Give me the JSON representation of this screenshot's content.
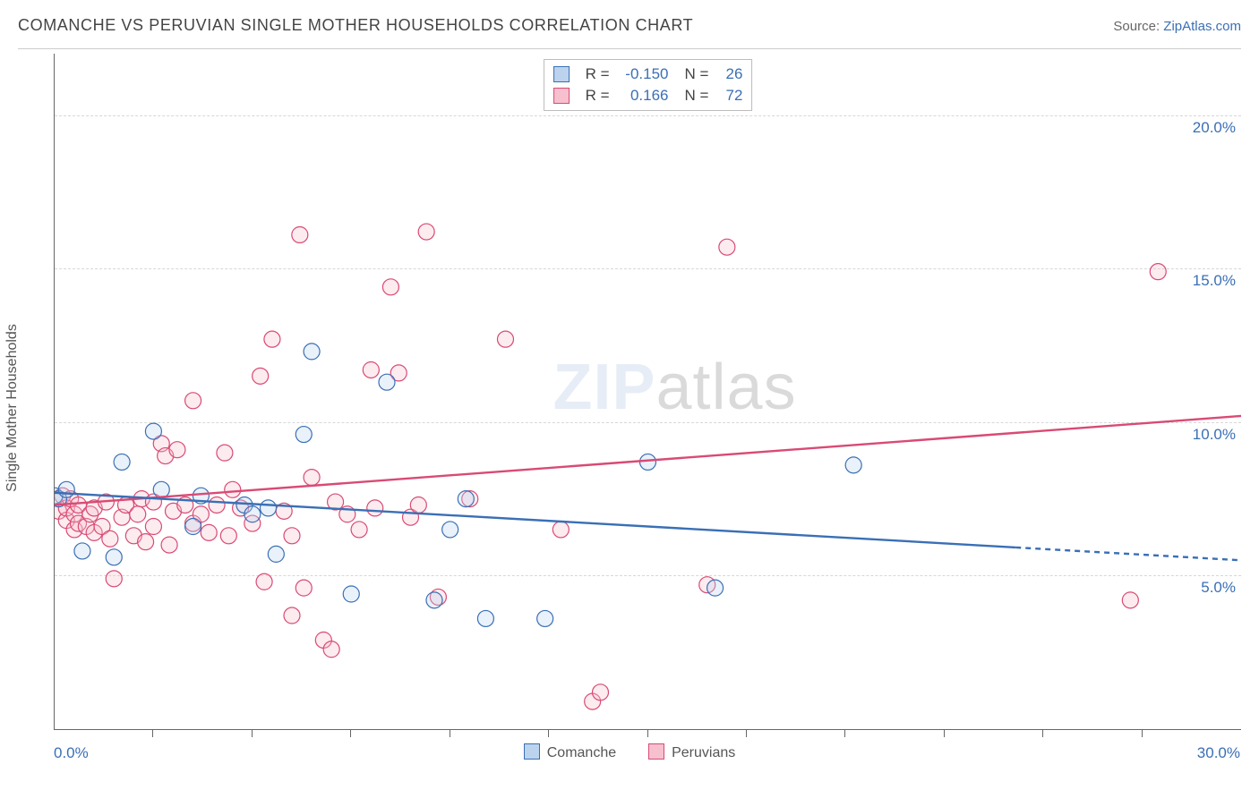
{
  "header": {
    "title": "COMANCHE VS PERUVIAN SINGLE MOTHER HOUSEHOLDS CORRELATION CHART",
    "source_prefix": "Source: ",
    "source_link": "ZipAtlas.com"
  },
  "ylabel": "Single Mother Households",
  "chart": {
    "type": "scatter-regression",
    "xlim": [
      0,
      30
    ],
    "ylim": [
      0,
      22
    ],
    "x_tick_step": 2.5,
    "x_tick_start": 2.5,
    "x_labels": [
      {
        "value": 0,
        "text": "0.0%"
      },
      {
        "value": 30,
        "text": "30.0%"
      }
    ],
    "y_gridlines": [
      5,
      10,
      15,
      20
    ],
    "y_labels": [
      {
        "value": 5,
        "text": "5.0%"
      },
      {
        "value": 10,
        "text": "10.0%"
      },
      {
        "value": 15,
        "text": "15.0%"
      },
      {
        "value": 20,
        "text": "20.0%"
      }
    ],
    "grid_color": "#d7d7d7",
    "background_color": "#ffffff",
    "marker_radius": 9,
    "marker_stroke_width": 1.2,
    "marker_fill_opacity": 0.32,
    "series": [
      {
        "name": "Peruvians",
        "stroke": "#d94a74",
        "fill": "#f7c0ce",
        "R": "0.166",
        "N": "72",
        "regression": {
          "x1": 0,
          "y1": 7.3,
          "x2": 30,
          "y2": 10.2,
          "dashed_after_x": null
        },
        "points": [
          [
            0.1,
            7.1
          ],
          [
            0.2,
            7.6
          ],
          [
            0.3,
            6.8
          ],
          [
            0.3,
            7.2
          ],
          [
            0.4,
            7.5
          ],
          [
            0.5,
            6.5
          ],
          [
            0.5,
            7.0
          ],
          [
            0.6,
            6.7
          ],
          [
            0.6,
            7.3
          ],
          [
            0.8,
            6.6
          ],
          [
            0.9,
            7.0
          ],
          [
            1.0,
            6.4
          ],
          [
            1.0,
            7.2
          ],
          [
            1.2,
            6.6
          ],
          [
            1.3,
            7.4
          ],
          [
            1.4,
            6.2
          ],
          [
            1.5,
            4.9
          ],
          [
            1.7,
            6.9
          ],
          [
            1.8,
            7.3
          ],
          [
            2.0,
            6.3
          ],
          [
            2.1,
            7.0
          ],
          [
            2.2,
            7.5
          ],
          [
            2.3,
            6.1
          ],
          [
            2.5,
            6.6
          ],
          [
            2.5,
            7.4
          ],
          [
            2.7,
            9.3
          ],
          [
            2.8,
            8.9
          ],
          [
            2.9,
            6.0
          ],
          [
            3.0,
            7.1
          ],
          [
            3.1,
            9.1
          ],
          [
            3.3,
            7.3
          ],
          [
            3.5,
            6.7
          ],
          [
            3.5,
            10.7
          ],
          [
            3.7,
            7.0
          ],
          [
            3.9,
            6.4
          ],
          [
            4.1,
            7.3
          ],
          [
            4.3,
            9.0
          ],
          [
            4.4,
            6.3
          ],
          [
            4.5,
            7.8
          ],
          [
            4.7,
            7.2
          ],
          [
            5.0,
            6.7
          ],
          [
            5.2,
            11.5
          ],
          [
            5.3,
            4.8
          ],
          [
            5.5,
            12.7
          ],
          [
            5.8,
            7.1
          ],
          [
            6.0,
            6.3
          ],
          [
            6.2,
            16.1
          ],
          [
            6.3,
            4.6
          ],
          [
            6.5,
            8.2
          ],
          [
            6.8,
            2.9
          ],
          [
            7.1,
            7.4
          ],
          [
            7.4,
            7.0
          ],
          [
            7.7,
            6.5
          ],
          [
            8.0,
            11.7
          ],
          [
            8.1,
            7.2
          ],
          [
            8.5,
            14.4
          ],
          [
            8.7,
            11.6
          ],
          [
            9.0,
            6.9
          ],
          [
            9.2,
            7.3
          ],
          [
            9.4,
            16.2
          ],
          [
            9.7,
            4.3
          ],
          [
            10.5,
            7.5
          ],
          [
            11.4,
            12.7
          ],
          [
            12.8,
            6.5
          ],
          [
            13.6,
            0.9
          ],
          [
            13.8,
            1.2
          ],
          [
            16.5,
            4.7
          ],
          [
            17.0,
            15.7
          ],
          [
            27.2,
            4.2
          ],
          [
            27.9,
            14.9
          ],
          [
            6.0,
            3.7
          ],
          [
            7.0,
            2.6
          ]
        ]
      },
      {
        "name": "Comanche",
        "stroke": "#3a6fb5",
        "fill": "#bcd3ee",
        "R": "-0.150",
        "N": "26",
        "regression": {
          "x1": 0,
          "y1": 7.7,
          "x2": 30,
          "y2": 5.5,
          "dashed_after_x": 24.3
        },
        "points": [
          [
            0.0,
            7.6
          ],
          [
            0.1,
            7.5
          ],
          [
            0.3,
            7.8
          ],
          [
            0.7,
            5.8
          ],
          [
            1.5,
            5.6
          ],
          [
            1.7,
            8.7
          ],
          [
            2.5,
            9.7
          ],
          [
            2.7,
            7.8
          ],
          [
            3.5,
            6.6
          ],
          [
            3.7,
            7.6
          ],
          [
            4.8,
            7.3
          ],
          [
            5.4,
            7.2
          ],
          [
            5.6,
            5.7
          ],
          [
            6.3,
            9.6
          ],
          [
            6.5,
            12.3
          ],
          [
            7.5,
            4.4
          ],
          [
            8.4,
            11.3
          ],
          [
            9.6,
            4.2
          ],
          [
            10.0,
            6.5
          ],
          [
            10.4,
            7.5
          ],
          [
            10.9,
            3.6
          ],
          [
            12.4,
            3.6
          ],
          [
            15.0,
            8.7
          ],
          [
            16.7,
            4.6
          ],
          [
            20.2,
            8.6
          ],
          [
            5.0,
            7.0
          ]
        ]
      }
    ],
    "regression_line_width": 2.4
  },
  "legend_top": {
    "r_label": "R =",
    "n_label": "N ="
  },
  "legend_bottom": {
    "items": [
      {
        "swatch_stroke": "#3a6fb5",
        "swatch_fill": "#bcd3ee",
        "label": "Comanche"
      },
      {
        "swatch_stroke": "#d94a74",
        "swatch_fill": "#f7c0ce",
        "label": "Peruvians"
      }
    ]
  },
  "watermark": {
    "zip": "ZIP",
    "atlas": "atlas"
  }
}
